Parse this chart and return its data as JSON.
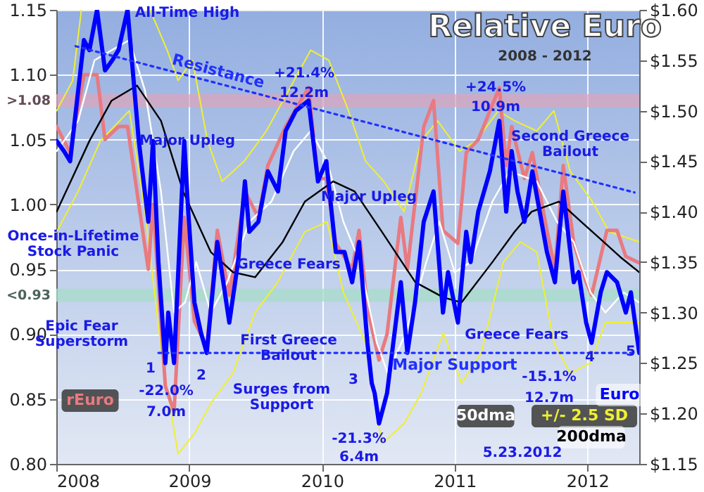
{
  "chart_data": {
    "type": "line",
    "title": "Relative Euro",
    "subtitle": "2008 - 2012",
    "grid": true,
    "xlim": [
      "2008",
      "2012-05-23"
    ],
    "xticks": [
      "2008",
      "2009",
      "2010",
      "2011",
      "2012"
    ],
    "ylim": [
      0.8,
      1.15
    ],
    "yticks": [
      {
        "value": 0.8,
        "label": "0.80"
      },
      {
        "value": 0.85,
        "label": "0.85"
      },
      {
        "value": 0.9,
        "label": "0.90"
      },
      {
        "value": 0.95,
        "label": "0.95"
      },
      {
        "value": 1.0,
        "label": "1.00"
      },
      {
        "value": 1.05,
        "label": "1.05"
      },
      {
        "value": 1.1,
        "label": "1.10"
      },
      {
        "value": 1.15,
        "label": "1.15"
      }
    ],
    "y2lim": [
      1.15,
      1.6
    ],
    "y2ticks": [
      {
        "value": 1.15,
        "label": "$1.15"
      },
      {
        "value": 1.2,
        "label": "$1.20"
      },
      {
        "value": 1.25,
        "label": "$1.25"
      },
      {
        "value": 1.3,
        "label": "$1.30"
      },
      {
        "value": 1.35,
        "label": "$1.35"
      },
      {
        "value": 1.4,
        "label": "$1.40"
      },
      {
        "value": 1.45,
        "label": "$1.45"
      },
      {
        "value": 1.5,
        "label": "$1.50"
      },
      {
        "value": 1.55,
        "label": "$1.55"
      },
      {
        "value": 1.6,
        "label": "$1.60"
      }
    ],
    "bands": [
      {
        "axis": "y",
        "from": 1.075,
        "to": 1.085,
        "label": ">1.08",
        "color": "#d9a6bd"
      },
      {
        "axis": "y",
        "from": 0.925,
        "to": 0.935,
        "label": "<0.93",
        "color": "#a6dcc8"
      }
    ],
    "series": [
      {
        "name": "+/- 2.5 SD",
        "color": "#f0f030",
        "axis": "y2",
        "x": [
          "2008-01-02",
          "2008-02-15",
          "2008-03-10",
          "2008-06-01",
          "2008-09-15",
          "2008-11-01",
          "2008-12-01",
          "2009-01-10",
          "2009-02-20",
          "2009-04-01",
          "2009-06-01",
          "2009-08-01",
          "2009-10-01",
          "2009-12-01",
          "2010-01-20",
          "2010-03-15",
          "2010-05-01",
          "2010-06-20",
          "2010-08-15",
          "2010-10-01",
          "2010-11-15",
          "2011-01-15",
          "2011-03-01",
          "2011-05-01",
          "2011-06-15",
          "2011-08-15",
          "2011-10-01",
          "2011-11-15",
          "2012-01-15",
          "2012-03-01",
          "2012-05-23"
        ],
        "values": [
          1.5,
          1.53,
          1.6,
          null,
          1.6,
          1.56,
          1.53,
          1.55,
          1.47,
          1.43,
          1.45,
          1.48,
          1.52,
          1.56,
          1.55,
          1.5,
          1.45,
          1.43,
          1.4,
          1.47,
          1.49,
          1.46,
          1.47,
          1.5,
          1.49,
          1.48,
          1.5,
          1.44,
          1.41,
          1.38,
          1.37
        ]
      },
      {
        "color": "#f0f030",
        "axis": "y2",
        "x": [
          "2008-01-02",
          "2008-03-01",
          "2008-05-01",
          "2008-07-20",
          "2008-09-01",
          "2008-10-20",
          "2008-12-01",
          "2009-01-15",
          "2009-03-01",
          "2009-05-01",
          "2009-07-01",
          "2009-09-01",
          "2009-11-15",
          "2010-01-15",
          "2010-03-01",
          "2010-05-01",
          "2010-06-15",
          "2010-08-15",
          "2010-10-01",
          "2010-12-01",
          "2011-01-20",
          "2011-03-15",
          "2011-05-15",
          "2011-07-01",
          "2011-08-15",
          "2011-10-01",
          "2011-11-15",
          "2012-01-10",
          "2012-02-20",
          "2012-04-01",
          "2012-05-23"
        ],
        "values": [
          1.38,
          1.42,
          1.47,
          1.5,
          1.4,
          1.25,
          1.16,
          1.18,
          1.21,
          1.24,
          1.3,
          1.33,
          1.38,
          1.39,
          1.32,
          1.27,
          1.17,
          1.19,
          1.22,
          1.28,
          1.23,
          1.26,
          1.35,
          1.37,
          1.36,
          1.27,
          1.24,
          1.25,
          1.29,
          1.29,
          1.29
        ]
      },
      {
        "name": "rEuro",
        "color": "#e87a80",
        "axis": "y",
        "x": [
          "2008-01-02",
          "2008-02-08",
          "2008-03-17",
          "2008-04-22",
          "2008-05-14",
          "2008-06-20",
          "2008-07-15",
          "2008-08-15",
          "2008-09-10",
          "2008-09-23",
          "2008-10-27",
          "2008-11-20",
          "2008-12-18",
          "2009-01-15",
          "2009-02-18",
          "2009-03-19",
          "2009-04-21",
          "2009-06-03",
          "2009-07-10",
          "2009-08-05",
          "2009-09-23",
          "2009-11-25",
          "2009-12-21",
          "2010-01-13",
          "2010-02-08",
          "2010-03-25",
          "2010-04-13",
          "2010-05-06",
          "2010-06-07",
          "2010-06-29",
          "2010-08-06",
          "2010-08-24",
          "2010-10-08",
          "2010-11-04",
          "2010-11-30",
          "2011-01-10",
          "2011-02-02",
          "2011-03-07",
          "2011-05-04",
          "2011-05-23",
          "2011-06-07",
          "2011-07-12",
          "2011-08-03",
          "2011-09-12",
          "2011-10-04",
          "2011-10-27",
          "2011-11-25",
          "2011-12-29",
          "2012-01-13",
          "2012-02-24",
          "2012-03-23",
          "2012-04-16",
          "2012-05-23"
        ],
        "values": [
          1.06,
          1.04,
          1.1,
          1.1,
          1.05,
          1.06,
          1.06,
          1.0,
          0.95,
          1.0,
          0.86,
          0.84,
          0.99,
          0.91,
          0.89,
          0.98,
          0.93,
          1.01,
          0.99,
          1.03,
          1.06,
          1.09,
          1.02,
          1.02,
          0.97,
          0.95,
          0.98,
          0.92,
          0.88,
          0.9,
          0.99,
          0.95,
          1.06,
          1.08,
          0.98,
          0.97,
          1.04,
          1.05,
          1.09,
          1.03,
          1.06,
          1.02,
          1.04,
          0.98,
          0.95,
          1.03,
          0.97,
          0.94,
          0.93,
          0.98,
          0.98,
          0.96,
          0.955
        ]
      },
      {
        "name": "50dma",
        "color": "#ffffff",
        "axis": "y2",
        "x": [
          "2008-01-02",
          "2008-03-01",
          "2008-04-15",
          "2008-06-01",
          "2008-07-20",
          "2008-09-01",
          "2008-10-15",
          "2008-11-20",
          "2008-12-20",
          "2009-01-20",
          "2009-03-01",
          "2009-04-15",
          "2009-06-15",
          "2009-08-15",
          "2009-10-15",
          "2009-12-01",
          "2010-01-15",
          "2010-03-01",
          "2010-04-15",
          "2010-06-01",
          "2010-07-01",
          "2010-08-20",
          "2010-10-15",
          "2010-11-20",
          "2011-01-01",
          "2011-02-15",
          "2011-04-15",
          "2011-06-01",
          "2011-08-15",
          "2011-10-10",
          "2011-11-25",
          "2012-01-10",
          "2012-02-20",
          "2012-04-10",
          "2012-05-23"
        ],
        "values": [
          1.46,
          1.49,
          1.55,
          1.56,
          1.57,
          1.52,
          1.42,
          1.3,
          1.31,
          1.35,
          1.3,
          1.33,
          1.39,
          1.41,
          1.46,
          1.48,
          1.45,
          1.39,
          1.35,
          1.27,
          1.24,
          1.28,
          1.35,
          1.39,
          1.34,
          1.35,
          1.41,
          1.44,
          1.43,
          1.39,
          1.37,
          1.32,
          1.3,
          1.32,
          1.31
        ]
      },
      {
        "name": "200dma",
        "color": "#000000",
        "axis": "y2",
        "x": [
          "2008-01-02",
          "2008-04-01",
          "2008-06-01",
          "2008-08-10",
          "2008-10-15",
          "2008-12-15",
          "2009-03-01",
          "2009-05-01",
          "2009-07-01",
          "2009-09-15",
          "2009-11-15",
          "2010-02-01",
          "2010-04-01",
          "2010-06-15",
          "2010-09-15",
          "2010-12-01",
          "2011-01-20",
          "2011-04-15",
          "2011-06-15",
          "2011-08-01",
          "2011-10-15",
          "2011-12-15",
          "2012-02-15",
          "2012-04-01",
          "2012-05-23"
        ],
        "values": [
          1.4,
          1.47,
          1.51,
          1.525,
          1.49,
          1.42,
          1.36,
          1.34,
          1.335,
          1.37,
          1.41,
          1.43,
          1.42,
          1.38,
          1.33,
          1.315,
          1.31,
          1.35,
          1.38,
          1.4,
          1.41,
          1.39,
          1.37,
          1.355,
          1.34
        ]
      },
      {
        "name": "Euro",
        "color": "#0000ff",
        "axis": "y2",
        "x": [
          "2008-01-02",
          "2008-01-22",
          "2008-02-08",
          "2008-02-27",
          "2008-03-17",
          "2008-04-01",
          "2008-04-22",
          "2008-05-14",
          "2008-06-03",
          "2008-06-20",
          "2008-07-15",
          "2008-08-15",
          "2008-09-10",
          "2008-09-23",
          "2008-10-08",
          "2008-10-27",
          "2008-11-04",
          "2008-11-20",
          "2008-12-18",
          "2008-12-29",
          "2009-01-15",
          "2009-02-02",
          "2009-02-18",
          "2009-03-19",
          "2009-04-21",
          "2009-05-15",
          "2009-06-03",
          "2009-06-15",
          "2009-07-10",
          "2009-08-05",
          "2009-09-02",
          "2009-09-23",
          "2009-10-21",
          "2009-11-25",
          "2009-12-21",
          "2010-01-13",
          "2010-02-08",
          "2010-03-04",
          "2010-03-25",
          "2010-04-13",
          "2010-05-06",
          "2010-05-18",
          "2010-05-26",
          "2010-06-07",
          "2010-06-29",
          "2010-08-06",
          "2010-08-24",
          "2010-09-14",
          "2010-10-08",
          "2010-11-04",
          "2010-11-30",
          "2010-12-14",
          "2011-01-10",
          "2011-02-02",
          "2011-02-14",
          "2011-03-07",
          "2011-04-08",
          "2011-05-04",
          "2011-05-23",
          "2011-06-07",
          "2011-06-23",
          "2011-07-12",
          "2011-08-03",
          "2011-09-12",
          "2011-10-04",
          "2011-10-27",
          "2011-11-25",
          "2011-12-08",
          "2011-12-29",
          "2012-01-13",
          "2012-02-07",
          "2012-02-24",
          "2012-03-23",
          "2012-04-16",
          "2012-04-30",
          "2012-05-23"
        ],
        "values": [
          1.47,
          1.46,
          1.45,
          1.51,
          1.57,
          1.56,
          1.6,
          1.54,
          1.55,
          1.56,
          1.6,
          1.47,
          1.39,
          1.47,
          1.35,
          1.25,
          1.3,
          1.25,
          1.47,
          1.4,
          1.31,
          1.28,
          1.26,
          1.37,
          1.29,
          1.35,
          1.43,
          1.38,
          1.39,
          1.44,
          1.42,
          1.48,
          1.5,
          1.51,
          1.43,
          1.45,
          1.36,
          1.36,
          1.33,
          1.37,
          1.27,
          1.23,
          1.22,
          1.19,
          1.22,
          1.33,
          1.26,
          1.31,
          1.39,
          1.42,
          1.3,
          1.34,
          1.29,
          1.38,
          1.35,
          1.4,
          1.44,
          1.49,
          1.4,
          1.46,
          1.42,
          1.39,
          1.44,
          1.36,
          1.33,
          1.42,
          1.33,
          1.34,
          1.29,
          1.27,
          1.32,
          1.34,
          1.33,
          1.3,
          1.32,
          1.26
        ]
      },
      {
        "name": "Resistance",
        "color": "#2030ff",
        "axis": "y2",
        "line_style": "dotted",
        "x": [
          "2008-02-23",
          "2012-05-10"
        ],
        "values": [
          1.564,
          1.419
        ]
      },
      {
        "name": "Major Support",
        "color": "#2030ff",
        "axis": "y2",
        "line_style": "dotted",
        "x": [
          "2008-10-08",
          "2012-05-15"
        ],
        "values": [
          1.26,
          1.26
        ]
      }
    ],
    "annotations": [
      "All-Time High",
      "+21.4%",
      "12.2m",
      "+24.5%",
      "10.9m",
      "Major Upleg",
      "Major Upleg",
      "Once-in-Lifetime Stock Panic",
      "Greece Fears",
      "Epic Fear Superstorm",
      "First Greece Bailout",
      "Surges from Support",
      "-22.0%",
      "7.0m",
      "Greece Fears",
      "-21.3%",
      "6.4m",
      "Second Greece Bailout",
      "-15.1%",
      "12.7m",
      "1",
      "2",
      "3",
      "4",
      "5",
      "5.23.2012"
    ]
  }
}
